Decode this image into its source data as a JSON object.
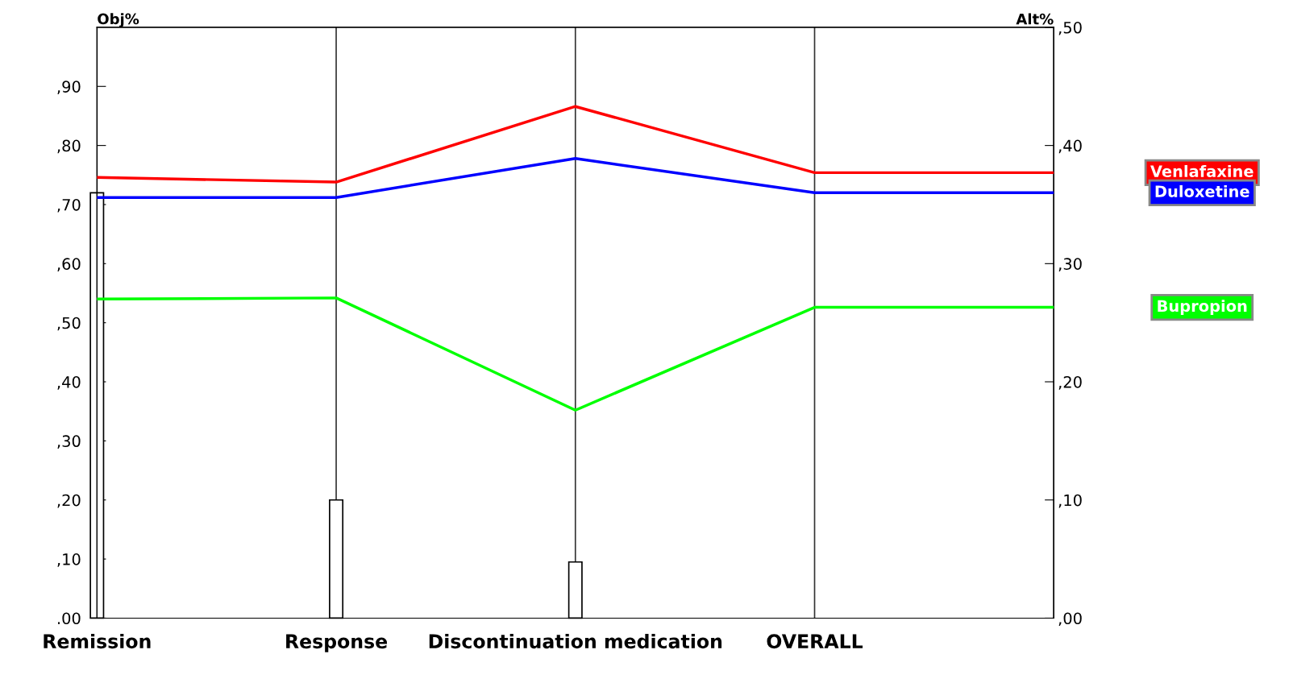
{
  "chart_data": {
    "type": "line",
    "ylabel": "Obj%",
    "y2label": "Alt%",
    "categories": [
      "Remission",
      "Response",
      "Discontinuation medication",
      "OVERALL",
      null
    ],
    "series": [
      {
        "type": "bar",
        "color": "#ffffff",
        "values": [
          72,
          20,
          9.5,
          null,
          null
        ]
      },
      {
        "name": "Venlafaxine",
        "axis": "y2",
        "color": "#ff0000",
        "values": [
          37.3,
          36.9,
          43.3,
          37.7,
          37.7
        ]
      },
      {
        "name": "Duloxetine",
        "axis": "y2",
        "color": "#0000ff",
        "values": [
          35.6,
          35.6,
          38.9,
          36,
          36
        ]
      },
      {
        "name": "Bupropion",
        "axis": "y2",
        "color": "#00ff00",
        "values": [
          27,
          27.1,
          17.6,
          26.3,
          26.3
        ]
      }
    ],
    "ylim": [
      0,
      100
    ],
    "yticks": [
      {
        "value": 0,
        "label": ".00"
      },
      {
        "value": 10,
        "label": ",10"
      },
      {
        "value": 20,
        "label": ",20"
      },
      {
        "value": 30,
        "label": ",30"
      },
      {
        "value": 40,
        "label": ",40"
      },
      {
        "value": 50,
        "label": ",50"
      },
      {
        "value": 60,
        "label": ",60"
      },
      {
        "value": 70,
        "label": ",70"
      },
      {
        "value": 80,
        "label": ",80"
      },
      {
        "value": 90,
        "label": ",90"
      }
    ],
    "y2lim": [
      0,
      50
    ],
    "y2ticks": [
      {
        "value": 0,
        "label": ",00"
      },
      {
        "value": 10,
        "label": ",10"
      },
      {
        "value": 20,
        "label": ",20"
      },
      {
        "value": 30,
        "label": ",30"
      },
      {
        "value": 40,
        "label": ",40"
      },
      {
        "value": 50,
        "label": ",50"
      }
    ],
    "grid": "x",
    "legend": false
  }
}
